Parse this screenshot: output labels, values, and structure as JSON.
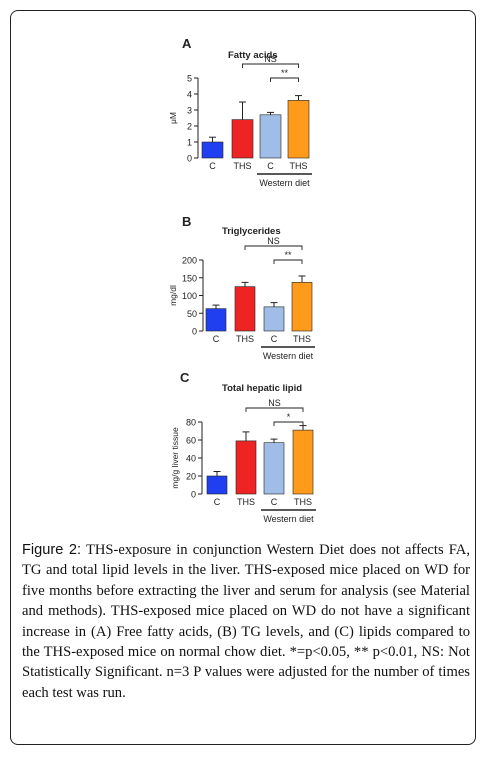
{
  "colors": {
    "control": "#1f3ff0",
    "ths": "#ee2424",
    "wd_control": "#9fbde6",
    "wd_ths": "#ff9a1a",
    "line": "#222222"
  },
  "chart_data": [
    {
      "type": "bar",
      "panel": "A",
      "title": "Fatty acids",
      "ylabel": "μM",
      "categories": [
        "C",
        "THS",
        "C",
        "THS"
      ],
      "values": [
        1.0,
        2.4,
        2.7,
        3.6
      ],
      "errors": [
        0.3,
        1.1,
        0.15,
        0.3
      ],
      "ylim": [
        0,
        5
      ],
      "yticks": [
        "0",
        "1",
        "2",
        "3",
        "4",
        "5"
      ],
      "group_label": "Western diet",
      "significance": [
        {
          "from": 1,
          "to": 3,
          "label": "NS"
        },
        {
          "from": 2,
          "to": 3,
          "label": "**"
        }
      ]
    },
    {
      "type": "bar",
      "panel": "B",
      "title": "Triglycerides",
      "ylabel": "mg/dl",
      "categories": [
        "C",
        "THS",
        "C",
        "THS"
      ],
      "values": [
        63,
        125,
        68,
        137
      ],
      "errors": [
        10,
        12,
        12,
        18
      ],
      "ylim": [
        0,
        200
      ],
      "yticks": [
        "0",
        "50",
        "100",
        "150",
        "200"
      ],
      "group_label": "Western diet",
      "significance": [
        {
          "from": 1,
          "to": 3,
          "label": "NS"
        },
        {
          "from": 2,
          "to": 3,
          "label": "**"
        }
      ]
    },
    {
      "type": "bar",
      "panel": "C",
      "title": "Total hepatic lipid",
      "ylabel": "mg/g liver tissue",
      "categories": [
        "C",
        "THS",
        "C",
        "THS"
      ],
      "values": [
        20,
        59,
        57,
        71
      ],
      "errors": [
        5,
        10,
        4,
        5
      ],
      "ylim": [
        0,
        80
      ],
      "yticks": [
        "0",
        "20",
        "40",
        "60",
        "80"
      ],
      "group_label": "Western diet",
      "significance": [
        {
          "from": 1,
          "to": 3,
          "label": "NS"
        },
        {
          "from": 2,
          "to": 3,
          "label": "*"
        }
      ]
    }
  ],
  "caption": {
    "label": "Figure 2:",
    "text": " THS-exposure in conjunction Western Diet does not affects FA, TG and total lipid levels in the liver. THS-exposed mice placed on WD for five months before extracting the liver and serum for analysis (see Material and methods). THS-exposed mice placed on WD do not have a significant increase in (A) Free fatty acids, (B) TG levels, and (C) lipids compared to the THS-exposed mice on normal chow diet. *=p<0.05, ** p<0.01, NS: Not Statistically Significant. n=3 P values were adjusted for the number of times each test was run."
  }
}
